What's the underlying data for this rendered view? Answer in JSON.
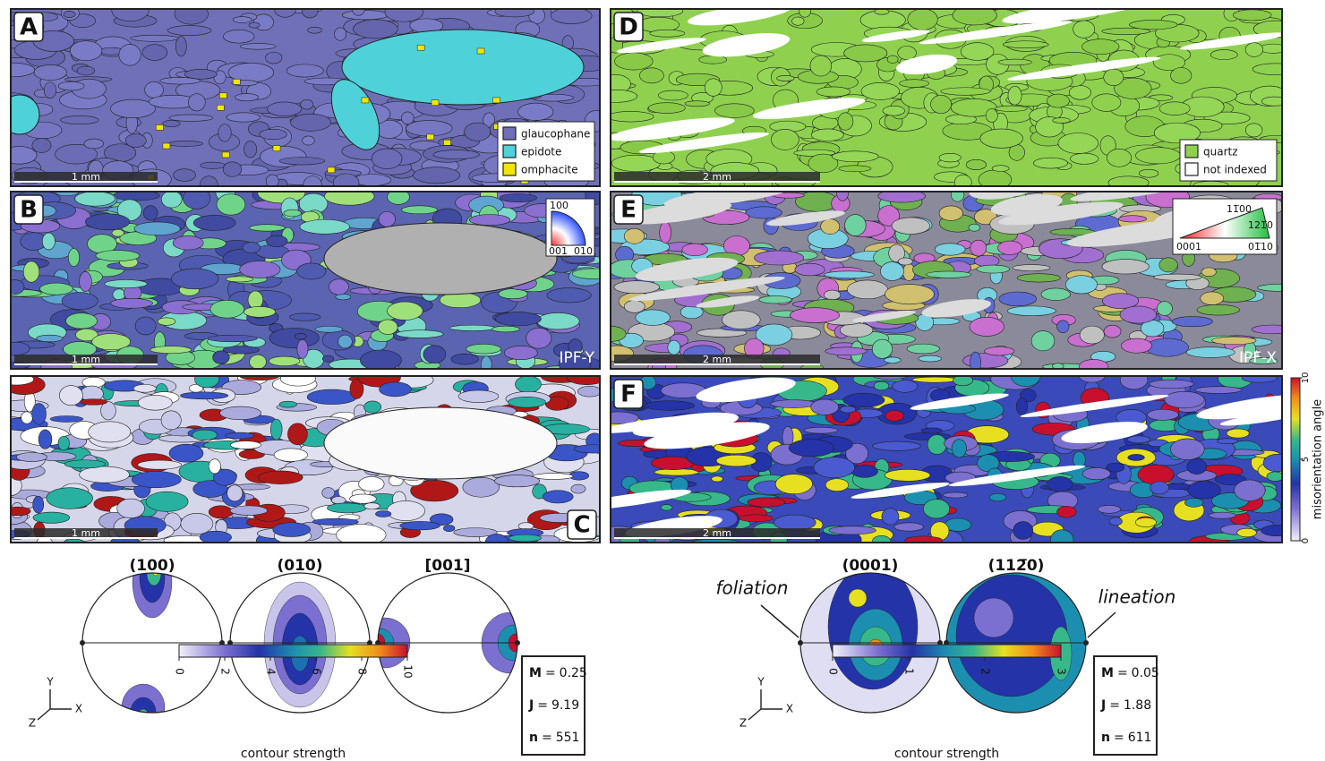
{
  "panels": [
    {
      "label": "A",
      "scale_bar": "1 mm",
      "legend": [
        "glaucophane",
        "epidote",
        "omphacite"
      ]
    },
    {
      "label": "B",
      "scale_bar": "1 mm",
      "key_labels": [
        "100",
        "001",
        "010"
      ],
      "map_label": "IPF-Y"
    },
    {
      "label": "C",
      "scale_bar": "1 mm"
    },
    {
      "label": "D",
      "scale_bar": "2 mm",
      "legend": [
        "quartz",
        "not indexed"
      ]
    },
    {
      "label": "E",
      "scale_bar": "2 mm",
      "key_labels": [
        "11̅00",
        "121̅0",
        "0001",
        "01̅10"
      ],
      "map_label": "IPF-X"
    },
    {
      "label": "F",
      "scale_bar": "2 mm"
    }
  ],
  "misorientation_scale": {
    "label": "misorientation angle",
    "lim": [
      0,
      10
    ],
    "ticks": [
      0,
      5,
      10
    ]
  },
  "pole_figures": [
    {
      "titles": [
        "(100)",
        "(010)",
        "[001]"
      ],
      "axes": [
        "Y",
        "Z",
        "X"
      ],
      "colorbar": {
        "label": "contour strength",
        "lim": [
          0,
          10
        ],
        "ticks": [
          0,
          2,
          4,
          6,
          8,
          10
        ]
      },
      "stats": [
        {
          "symbol": "M",
          "relation": "=",
          "value": 0.25
        },
        {
          "symbol": "J",
          "relation": "=",
          "value": 9.19
        },
        {
          "symbol": "n",
          "relation": "=",
          "value": 551
        }
      ]
    },
    {
      "titles": [
        "(0001)",
        "(112̅0)"
      ],
      "axes": [
        "Y",
        "Z",
        "X"
      ],
      "annotations": [
        "foliation",
        "lineation"
      ],
      "colorbar": {
        "label": "contour strength",
        "lim": [
          0,
          3
        ],
        "ticks": [
          0,
          1,
          2,
          3
        ]
      },
      "stats": [
        {
          "symbol": "M",
          "relation": "=",
          "value": 0.05
        },
        {
          "symbol": "J",
          "relation": "=",
          "value": 1.88
        },
        {
          "symbol": "n",
          "relation": "=",
          "value": 611
        }
      ]
    }
  ]
}
